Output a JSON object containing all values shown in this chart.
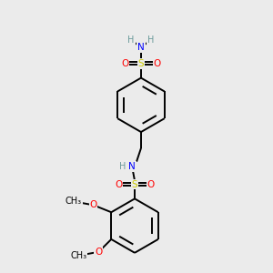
{
  "bg_color": "#ebebeb",
  "atom_colors": {
    "C": "#000000",
    "H": "#6a9a9a",
    "N": "#0000ff",
    "O": "#ff0000",
    "S": "#cccc00"
  },
  "bond_color": "#000000",
  "bond_width": 1.4,
  "figsize": [
    3.0,
    3.0
  ],
  "dpi": 100
}
